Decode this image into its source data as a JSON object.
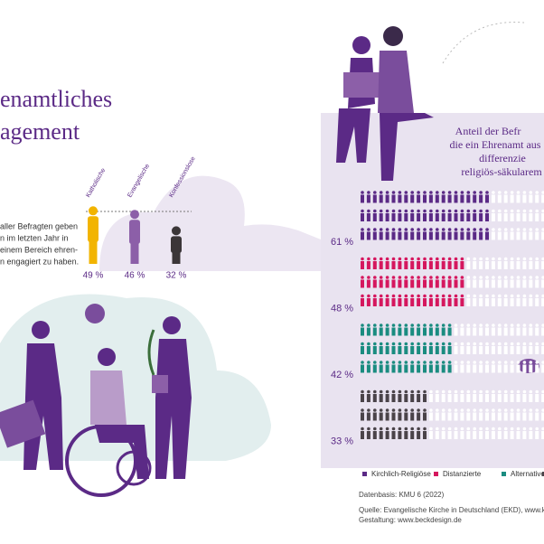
{
  "title_lines": [
    "enamtliches",
    "agement"
  ],
  "intro_lines": [
    "aller Befragten geben",
    "n im letzten Jahr in",
    "einem Bereich ehren-",
    "n engagiert zu haben."
  ],
  "chart_data": [
    {
      "type": "figures",
      "categories": [
        "Katholische",
        "Evangelische",
        "Konfessionslose"
      ],
      "values": [
        49,
        46,
        32
      ],
      "value_labels": [
        "49 %",
        "46 %",
        "32 %"
      ],
      "colors": [
        "#f2b400",
        "#8c5fa8",
        "#3b3638"
      ]
    },
    {
      "type": "pictogram",
      "title_lines": [
        "Anteil der Befr",
        "die ein Ehrenamt aus",
        "differenzie",
        "religiös-säkularem"
      ],
      "series": [
        {
          "name": "Kirchlich-Religiöse",
          "color": "#5b2a86",
          "values": [
            61
          ],
          "value_labels": [
            "61 %"
          ]
        },
        {
          "name": "Distanzierte",
          "color": "#d5175e",
          "values": [
            48
          ],
          "value_labels": [
            "48 %"
          ]
        },
        {
          "name": "Alternative",
          "color": "#1a8c80",
          "values": [
            42
          ],
          "value_labels": [
            "42 %"
          ]
        },
        {
          "color": "#4a4349",
          "values": [
            33
          ],
          "value_labels": [
            "33 %"
          ]
        }
      ]
    }
  ],
  "footer": {
    "basis": "Datenbasis: KMU 6 (2022)",
    "source": "Quelle: Evangelische Kirche in Deutschland (EKD), www.kmu.ekd.",
    "design": "Gestaltung: www.beckdesign.de"
  }
}
